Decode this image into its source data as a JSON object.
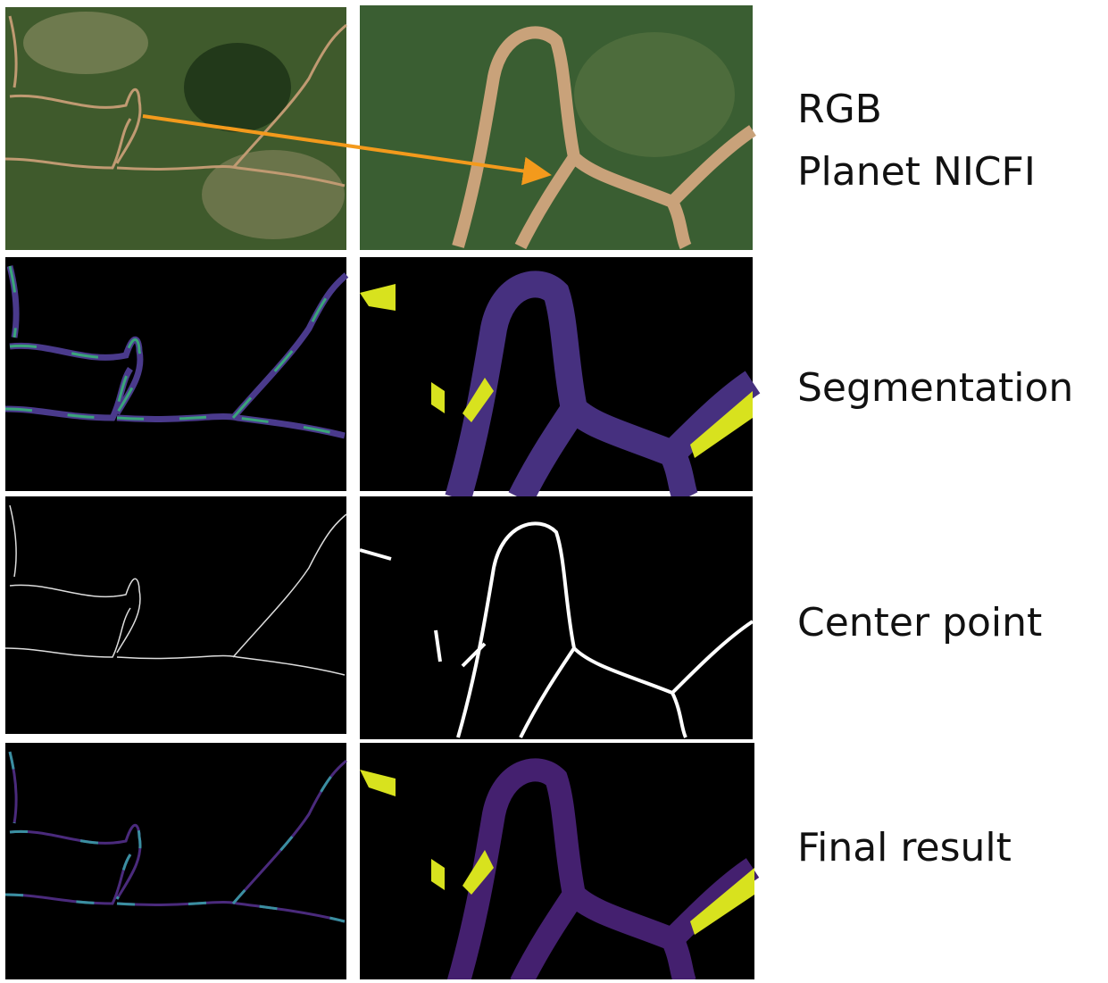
{
  "rows": [
    {
      "label": [
        "RGB",
        "Planet NICFI"
      ]
    },
    {
      "label": [
        "Segmentation"
      ]
    },
    {
      "label": [
        "Center point"
      ]
    },
    {
      "label": [
        "Final result"
      ]
    }
  ]
}
